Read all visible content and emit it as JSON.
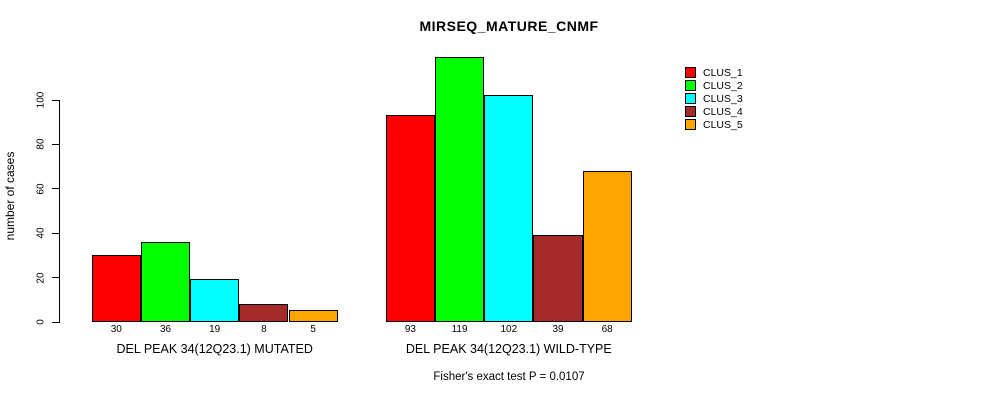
{
  "chart_data": {
    "type": "bar",
    "title": "MIRSEQ_MATURE_CNMF",
    "ylabel": "number of cases",
    "yticks": [
      0,
      20,
      40,
      60,
      80,
      100
    ],
    "ylim": [
      0,
      100
    ],
    "grid": false,
    "legend_position": "top-right",
    "categories": [
      "DEL PEAK 34(12Q23.1) MUTATED",
      "DEL PEAK 34(12Q23.1) WILD-TYPE"
    ],
    "groups": [
      {
        "label": "DEL PEAK 34(12Q23.1) MUTATED",
        "values": [
          30,
          36,
          19,
          8,
          5
        ]
      },
      {
        "label": "DEL PEAK 34(12Q23.1) WILD-TYPE",
        "values": [
          93,
          119,
          102,
          39,
          68
        ]
      }
    ],
    "series": [
      {
        "name": "CLUS_1",
        "color": "#ff0000"
      },
      {
        "name": "CLUS_2",
        "color": "#00ff00"
      },
      {
        "name": "CLUS_3",
        "color": "#00ffff"
      },
      {
        "name": "CLUS_4",
        "color": "#a52a2a"
      },
      {
        "name": "CLUS_5",
        "color": "#ffa500"
      }
    ],
    "footnote": "Fisher's exact test P = 0.0107"
  }
}
